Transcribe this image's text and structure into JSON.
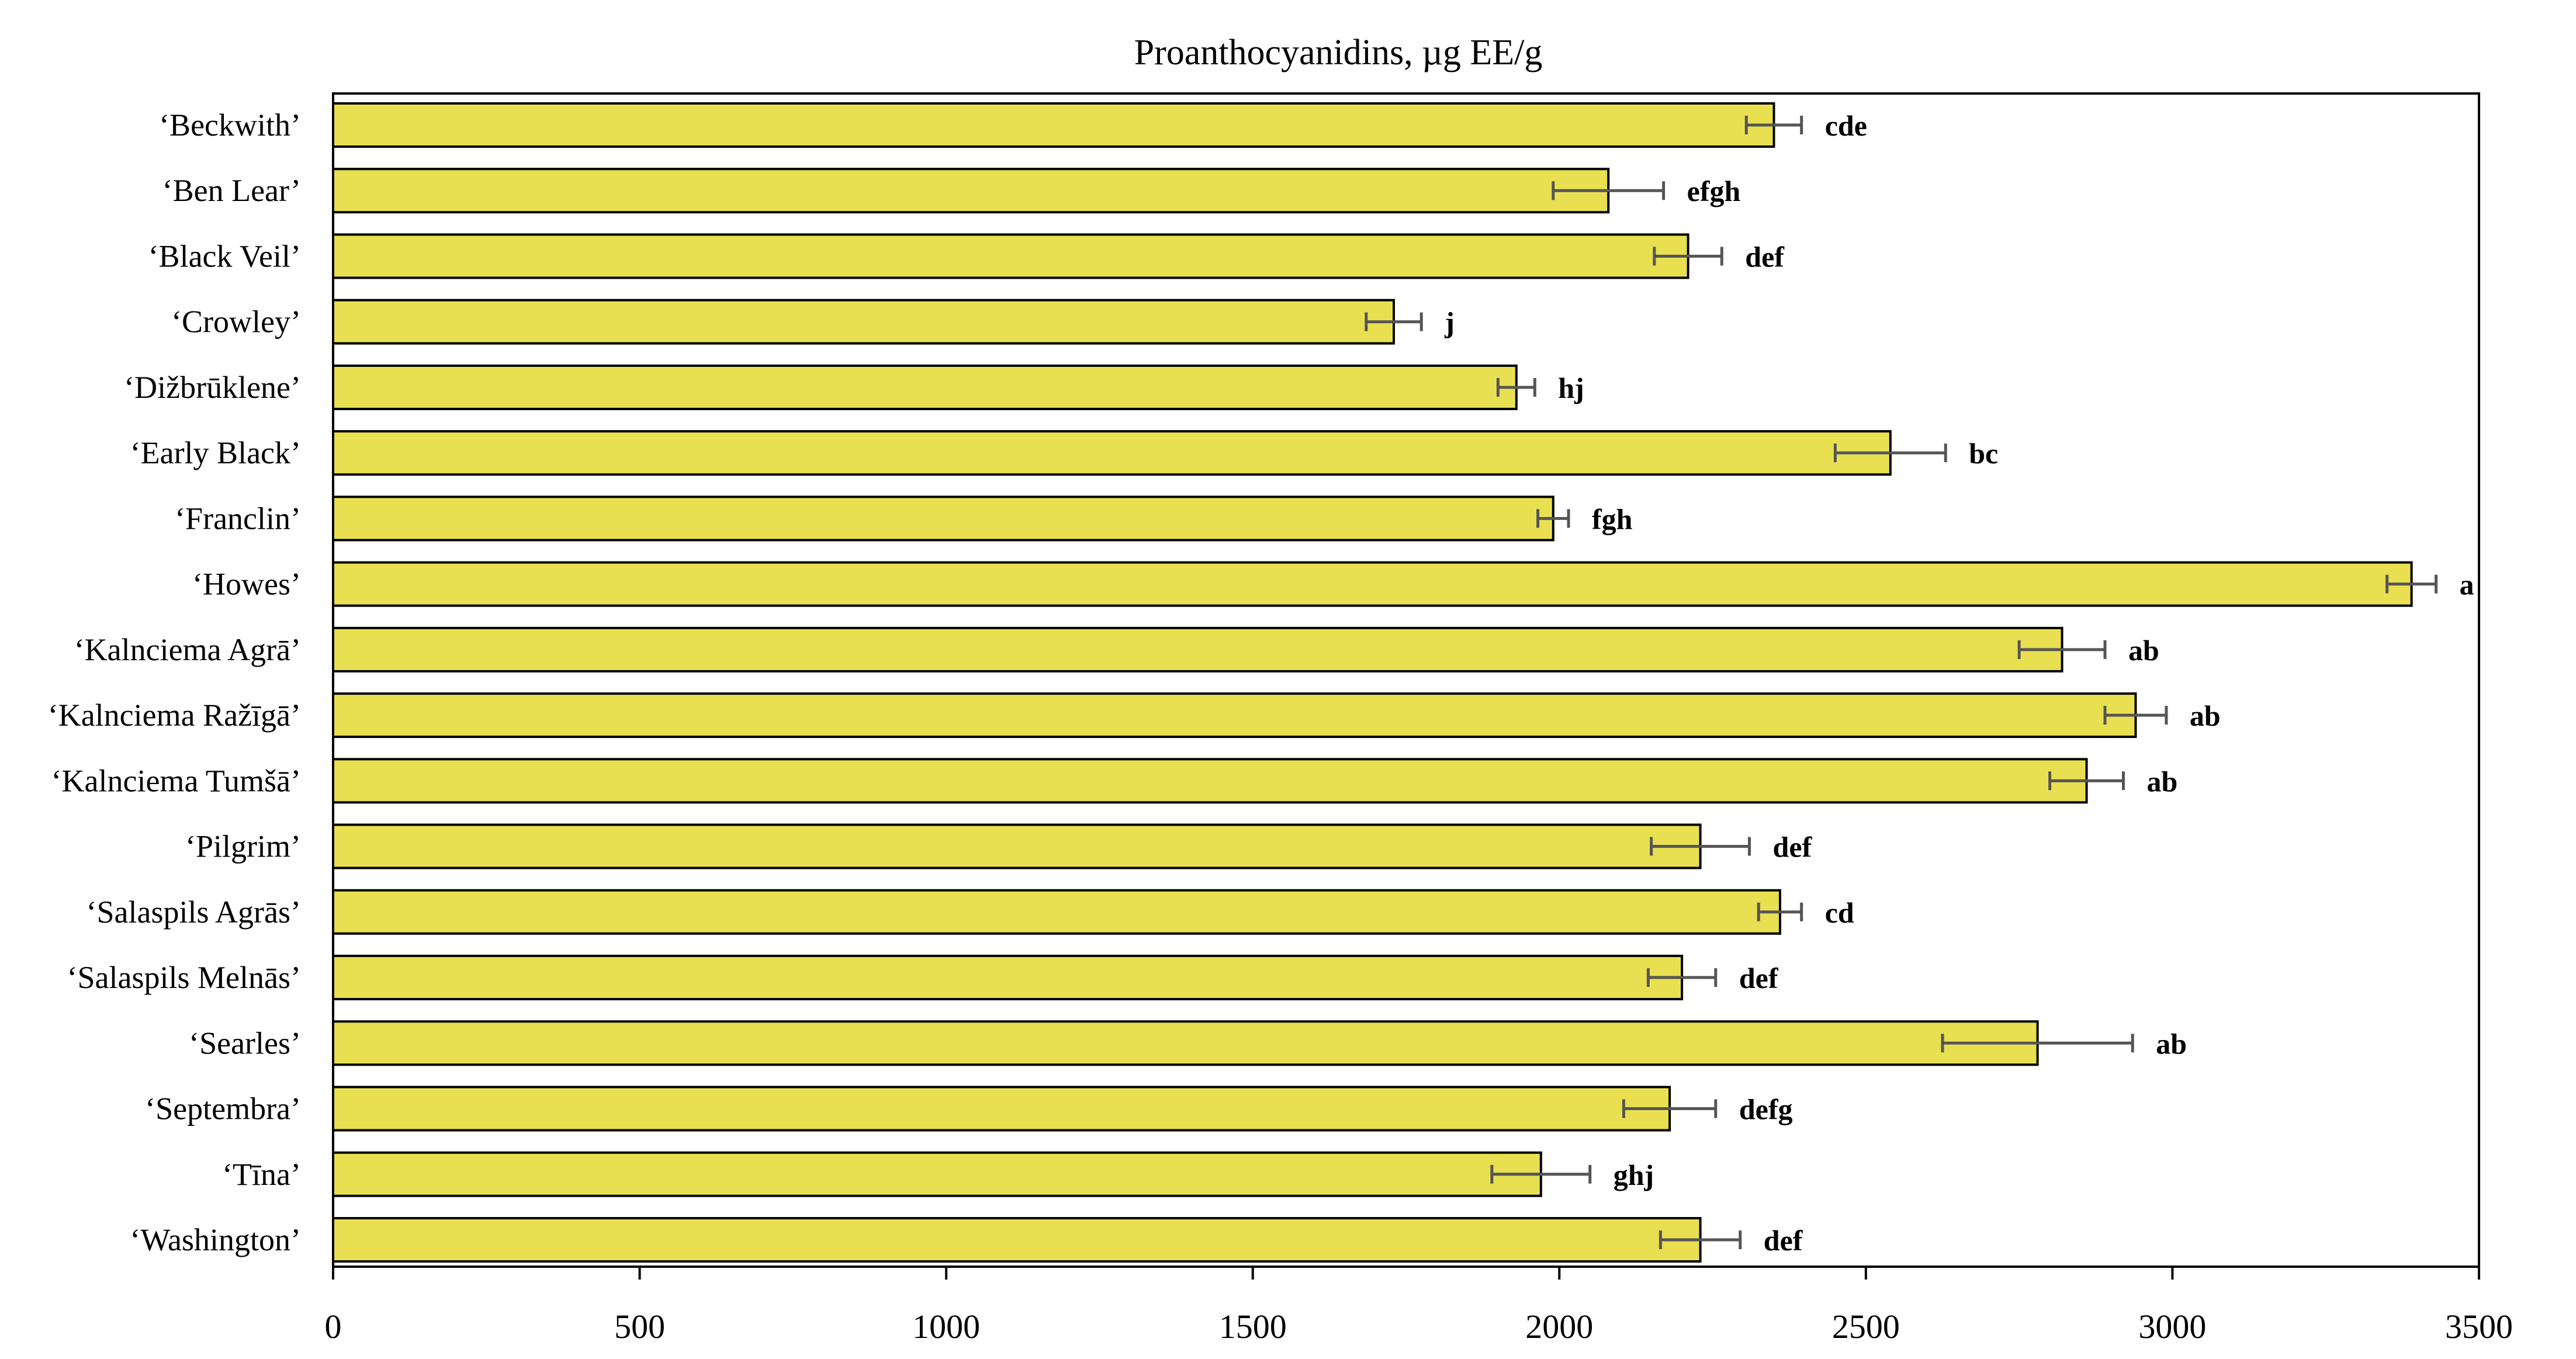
{
  "chart_data": {
    "type": "bar",
    "orientation": "horizontal",
    "title": "Proanthocyanidins, µg EE/g",
    "xlabel": "",
    "ylabel": "",
    "xlim": [
      0,
      3500
    ],
    "xticks": [
      0,
      500,
      1000,
      1500,
      2000,
      2500,
      3000,
      3500
    ],
    "grid": false,
    "bar_color": "#e8e050",
    "categories": [
      "‘Beckwith’",
      "‘Ben Lear’",
      "‘Black Veil’",
      "‘Crowley’",
      "‘Dižbrūklene’",
      "‘Early Black’",
      "‘Franclin’",
      "‘Howes’",
      "‘Kalnciema Agrā’",
      "‘Kalnciema Ražīgā’",
      "‘Kalnciema Tumšā’",
      "‘Pilgrim’",
      "‘Salaspils Agrās’",
      "‘Salaspils Melnās’",
      "‘Searles’",
      "‘Septembra’",
      "‘Tīna’",
      "‘Washington’"
    ],
    "values": [
      2350,
      2080,
      2210,
      1730,
      1930,
      2540,
      1990,
      3390,
      2820,
      2940,
      2860,
      2230,
      2360,
      2200,
      2780,
      2180,
      1970,
      2230
    ],
    "errors": [
      45,
      90,
      55,
      45,
      30,
      90,
      25,
      40,
      70,
      50,
      60,
      80,
      35,
      55,
      155,
      75,
      80,
      65
    ],
    "significance": [
      "cde",
      "efgh",
      "def",
      "j",
      "hj",
      "bc",
      "fgh",
      "a",
      "ab",
      "ab",
      "ab",
      "def",
      "cd",
      "def",
      "ab",
      "defg",
      "ghj",
      "def"
    ]
  }
}
